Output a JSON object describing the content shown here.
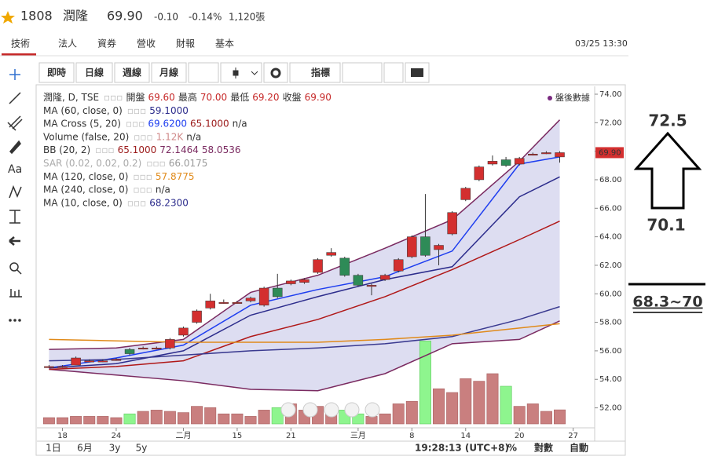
{
  "header": {
    "code": "1808",
    "name": "潤隆",
    "price": "69.90",
    "change": "-0.10",
    "change_pct": "-0.14%",
    "volume": "1,120張"
  },
  "tabs": [
    "技術",
    "法人",
    "資券",
    "營收",
    "財報",
    "基本"
  ],
  "datetime": "03/25 13:30",
  "toolbar": [
    "即時",
    "日線",
    "週線",
    "月線",
    "指標"
  ],
  "text_tool": "Aa",
  "legend": [
    {
      "label": "潤隆, D, TSE",
      "values": [
        "開盤",
        "69.60",
        "最高",
        "70.00",
        "最低",
        "69.20",
        "收盤",
        "69.90"
      ],
      "colors": [
        "#333",
        "#c62828",
        "#333",
        "#c62828",
        "#333",
        "#c62828",
        "#333",
        "#c62828"
      ]
    },
    {
      "label": "MA (60, close, 0)",
      "values": [
        "59.1000"
      ],
      "colors": [
        "#2c2c8c"
      ]
    },
    {
      "label": "MA Cross (5, 20)",
      "values": [
        "69.6200",
        "65.1000",
        "n/a"
      ],
      "colors": [
        "#1e3ef0",
        "#9b1a1a",
        "#333"
      ]
    },
    {
      "label": "Volume (false, 20)",
      "values": [
        "1.12K",
        "n/a"
      ],
      "colors": [
        "#d08a8a",
        "#333"
      ]
    },
    {
      "label": "BB (20, 2)",
      "values": [
        "65.1000",
        "72.1464",
        "58.0536"
      ],
      "colors": [
        "#9b1a1a",
        "#7a2a60",
        "#7a2a60"
      ]
    },
    {
      "label": "SAR (0.02, 0.02, 0.2)",
      "values": [
        "66.0175"
      ],
      "colors": [
        "#999"
      ]
    },
    {
      "label": "MA (120, close, 0)",
      "values": [
        "57.8775"
      ],
      "colors": [
        "#e08a1a"
      ]
    },
    {
      "label": "MA (240, close, 0)",
      "values": [
        "n/a"
      ],
      "colors": [
        "#333"
      ]
    },
    {
      "label": "MA (10, close, 0)",
      "values": [
        "68.2300"
      ],
      "colors": [
        "#2c2c8c"
      ]
    }
  ],
  "after_hours": "盤後數據",
  "last_price_label": "69.90",
  "footer": {
    "ranges": [
      "1日",
      "6月",
      "3y",
      "5y"
    ],
    "clock": "19:28:13 (UTC+8)",
    "options": [
      "%",
      "對數",
      "自動"
    ]
  },
  "annotations": {
    "target": "72.5",
    "support": "70.1",
    "range": "68.3~70"
  },
  "chart_data": {
    "type": "candlestick",
    "open": [
      54.9,
      54.9,
      55.0,
      55.3,
      55.3,
      55.4,
      56.1,
      56.2,
      56.2,
      56.2,
      57.1,
      58.0,
      59.0,
      59.4,
      59.4,
      59.5,
      59.2,
      60.4,
      60.7,
      60.8,
      61.5,
      62.7,
      62.5,
      61.3,
      60.6,
      61.0,
      61.6,
      62.6,
      64.0,
      63.1,
      64.2,
      66.6,
      68.0,
      69.1,
      69.4,
      69.1,
      69.8,
      69.9,
      69.6
    ],
    "high": [
      55.0,
      55.0,
      55.6,
      55.4,
      55.4,
      55.5,
      56.2,
      56.3,
      56.3,
      56.9,
      57.7,
      58.9,
      60.0,
      59.6,
      59.5,
      59.8,
      60.5,
      61.4,
      61.0,
      61.1,
      62.5,
      63.2,
      62.6,
      61.4,
      60.7,
      61.4,
      62.5,
      64.1,
      67.0,
      63.5,
      65.8,
      67.5,
      69.0,
      69.7,
      69.6,
      69.6,
      69.9,
      70.0,
      70.0
    ],
    "low": [
      54.8,
      54.8,
      55.0,
      55.2,
      55.2,
      55.3,
      55.7,
      56.1,
      56.1,
      56.1,
      57.0,
      57.9,
      58.9,
      59.3,
      59.3,
      59.4,
      59.1,
      59.7,
      60.6,
      60.7,
      61.4,
      62.6,
      61.2,
      60.5,
      59.9,
      60.9,
      61.5,
      62.5,
      62.6,
      62.0,
      64.1,
      66.5,
      67.9,
      69.0,
      68.9,
      69.0,
      69.7,
      69.8,
      69.2
    ],
    "close": [
      54.9,
      54.9,
      55.5,
      55.3,
      55.3,
      55.4,
      55.8,
      56.2,
      56.2,
      56.8,
      57.6,
      58.8,
      59.5,
      59.4,
      59.4,
      59.7,
      60.4,
      59.8,
      60.9,
      61.0,
      62.4,
      62.9,
      61.3,
      60.6,
      60.6,
      61.3,
      62.4,
      64.0,
      62.7,
      63.4,
      65.7,
      67.4,
      68.9,
      69.3,
      69.0,
      69.5,
      69.8,
      69.9,
      69.9
    ],
    "volume": [
      0.5,
      0.5,
      0.6,
      0.6,
      0.6,
      0.5,
      0.8,
      1.0,
      1.1,
      1.0,
      0.9,
      1.4,
      1.3,
      0.8,
      0.8,
      0.6,
      1.1,
      1.3,
      1.6,
      1.1,
      1.4,
      1.0,
      1.1,
      0.8,
      0.6,
      0.8,
      1.6,
      1.8,
      6.6,
      2.8,
      2.5,
      3.6,
      3.4,
      4.0,
      3.0,
      1.4,
      1.6,
      1.0,
      1.12
    ],
    "up_color": "#d32f2f",
    "down_color": "#2e8b57",
    "vol_up_color": "#c97f7f",
    "vol_down_color": "#8ef58e",
    "lines": [
      {
        "name": "BB upper",
        "color": "#7a2a60",
        "x": [
          0,
          5,
          10,
          15,
          20,
          25,
          30,
          35,
          38
        ],
        "values": [
          56.1,
          56.2,
          56.8,
          60.1,
          61.3,
          63.2,
          65.2,
          69.3,
          72.2
        ]
      },
      {
        "name": "BB lower",
        "color": "#7a2a60",
        "x": [
          0,
          5,
          10,
          15,
          20,
          25,
          30,
          35,
          38
        ],
        "values": [
          54.7,
          54.3,
          53.9,
          53.3,
          53.2,
          54.4,
          56.5,
          56.8,
          58.1
        ]
      },
      {
        "name": "MA 5",
        "color": "#1e3ef0",
        "x": [
          0,
          5,
          10,
          15,
          20,
          25,
          30,
          35,
          38
        ],
        "values": [
          54.8,
          55.5,
          56.4,
          59.2,
          60.3,
          61.2,
          63.0,
          69.1,
          69.6
        ]
      },
      {
        "name": "MA 10",
        "color": "#2c2c8c",
        "x": [
          0,
          5,
          10,
          15,
          20,
          25,
          30,
          35,
          38
        ],
        "values": [
          54.8,
          55.1,
          56.0,
          58.5,
          59.8,
          61.0,
          61.9,
          66.8,
          68.2
        ]
      },
      {
        "name": "MA 20",
        "color": "#b01818",
        "x": [
          0,
          5,
          10,
          15,
          20,
          25,
          30,
          35,
          38
        ],
        "values": [
          54.7,
          54.9,
          55.3,
          57.0,
          58.2,
          59.8,
          61.7,
          63.8,
          65.1
        ]
      },
      {
        "name": "MA 60",
        "color": "#3a3a90",
        "x": [
          0,
          5,
          10,
          15,
          20,
          25,
          30,
          35,
          38
        ],
        "values": [
          55.3,
          55.4,
          55.7,
          56.0,
          56.2,
          56.5,
          57.0,
          58.2,
          59.1
        ]
      },
      {
        "name": "MA 120",
        "color": "#e08a1a",
        "x": [
          0,
          5,
          10,
          15,
          20,
          25,
          30,
          35,
          38
        ],
        "values": [
          56.8,
          56.7,
          56.6,
          56.6,
          56.6,
          56.8,
          57.1,
          57.6,
          57.9
        ]
      }
    ],
    "band_fill": "rgba(120,120,200,0.25)",
    "xlim": [
      -0.9,
      40.6
    ],
    "xticks": [
      {
        "value": 1,
        "label": "18"
      },
      {
        "value": 5,
        "label": "24"
      },
      {
        "value": 10,
        "label": "二月"
      },
      {
        "value": 14,
        "label": "15"
      },
      {
        "value": 18,
        "label": "21"
      },
      {
        "value": 23,
        "label": "三月"
      },
      {
        "value": 27,
        "label": "8"
      },
      {
        "value": 31,
        "label": "14"
      },
      {
        "value": 35,
        "label": "20"
      },
      {
        "value": 39,
        "label": "27"
      }
    ],
    "ylim": [
      50.6,
      74.55
    ],
    "yticks": [
      {
        "value": 52,
        "label": "52.00"
      },
      {
        "value": 54,
        "label": "54.00"
      },
      {
        "value": 56,
        "label": "56.00"
      },
      {
        "value": 58,
        "label": "58.00"
      },
      {
        "value": 60,
        "label": "60.00"
      },
      {
        "value": 62,
        "label": "62.00"
      },
      {
        "value": 64,
        "label": "64.00"
      },
      {
        "value": 66,
        "label": "66.00"
      },
      {
        "value": 68,
        "label": "68.00"
      },
      {
        "value": 70,
        "label": "70.00"
      },
      {
        "value": 72,
        "label": "72.00"
      },
      {
        "value": 74,
        "label": "74.00"
      }
    ],
    "vlim": [
      0,
      8
    ]
  }
}
